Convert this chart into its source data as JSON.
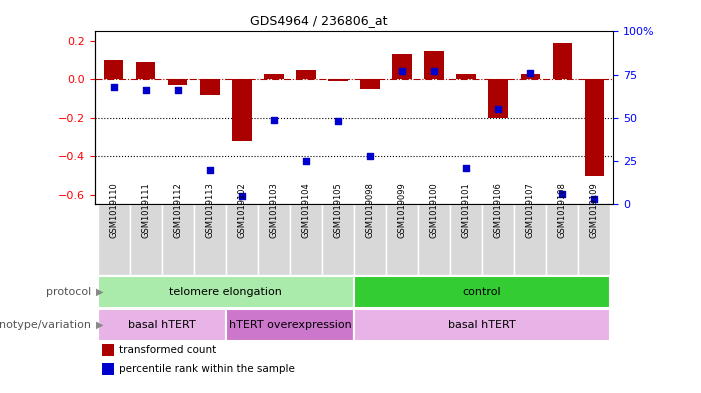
{
  "title": "GDS4964 / 236806_at",
  "samples": [
    "GSM1019110",
    "GSM1019111",
    "GSM1019112",
    "GSM1019113",
    "GSM1019102",
    "GSM1019103",
    "GSM1019104",
    "GSM1019105",
    "GSM1019098",
    "GSM1019099",
    "GSM1019100",
    "GSM1019101",
    "GSM1019106",
    "GSM1019107",
    "GSM1019108",
    "GSM1019109"
  ],
  "bar_values": [
    0.1,
    0.09,
    -0.03,
    -0.08,
    -0.32,
    0.03,
    0.05,
    -0.01,
    -0.05,
    0.13,
    0.15,
    0.03,
    -0.2,
    0.03,
    0.19,
    -0.5
  ],
  "scatter_percentiles": [
    68,
    66,
    66,
    20,
    5,
    49,
    25,
    48,
    28,
    77,
    77,
    21,
    55,
    76,
    6,
    3
  ],
  "bar_color": "#aa0000",
  "scatter_color": "#0000cc",
  "ylim_left": [
    -0.65,
    0.25
  ],
  "ylim_right": [
    0,
    100
  ],
  "yticks_left": [
    -0.6,
    -0.4,
    -0.2,
    0.0,
    0.2
  ],
  "yticks_right": [
    0,
    25,
    50,
    75,
    100
  ],
  "hline_y": 0.0,
  "dotted_lines": [
    -0.2,
    -0.4
  ],
  "protocol_groups": [
    {
      "label": "telomere elongation",
      "start": 0,
      "end": 8,
      "color": "#aaeaaa"
    },
    {
      "label": "control",
      "start": 8,
      "end": 16,
      "color": "#33cc33"
    }
  ],
  "genotype_groups": [
    {
      "label": "basal hTERT",
      "start": 0,
      "end": 4,
      "color": "#e8b4e8"
    },
    {
      "label": "hTERT overexpression",
      "start": 4,
      "end": 8,
      "color": "#cc77cc"
    },
    {
      "label": "basal hTERT",
      "start": 8,
      "end": 16,
      "color": "#e8b4e8"
    }
  ],
  "legend_items": [
    {
      "color": "#aa0000",
      "label": "transformed count"
    },
    {
      "color": "#0000cc",
      "label": "percentile rank within the sample"
    }
  ],
  "protocol_label": "protocol",
  "genotype_label": "genotype/variation"
}
